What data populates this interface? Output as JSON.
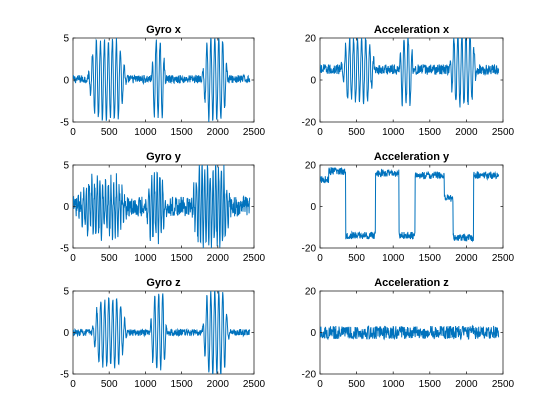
{
  "figure": {
    "line_color": "#0072BD",
    "background": "#ffffff"
  },
  "chart_data": [
    {
      "type": "line",
      "title": "Gyro x",
      "xlim": [
        0,
        2500
      ],
      "ylim": [
        -5,
        5
      ],
      "xticks": [
        0,
        500,
        1000,
        1500,
        2000,
        2500
      ],
      "yticks": [
        -5,
        0,
        5
      ],
      "signal": {
        "length": 2440,
        "baseline": 0.1,
        "noise": 0.5,
        "bursts": [
          {
            "start": 200,
            "end": 750,
            "amplitude": 4.6,
            "period": 55
          },
          {
            "start": 1080,
            "end": 1280,
            "amplitude": 4.6,
            "period": 55
          },
          {
            "start": 1780,
            "end": 2150,
            "amplitude": 4.8,
            "period": 55
          }
        ]
      }
    },
    {
      "type": "line",
      "title": "Acceleration x",
      "xlim": [
        0,
        2500
      ],
      "ylim": [
        -20,
        20
      ],
      "xticks": [
        0,
        500,
        1000,
        1500,
        2000,
        2500
      ],
      "yticks": [
        -20,
        0,
        20
      ],
      "signal": {
        "length": 2440,
        "baseline": 5,
        "noise": 2.5,
        "bursts": [
          {
            "start": 280,
            "end": 760,
            "amplitude": 15,
            "period": 55
          },
          {
            "start": 1080,
            "end": 1280,
            "amplitude": 16,
            "period": 55
          },
          {
            "start": 1760,
            "end": 2150,
            "amplitude": 17,
            "period": 55
          }
        ]
      }
    },
    {
      "type": "line",
      "title": "Gyro y",
      "xlim": [
        0,
        2500
      ],
      "ylim": [
        -5,
        5
      ],
      "xticks": [
        0,
        500,
        1000,
        1500,
        2000,
        2500
      ],
      "yticks": [
        -5,
        0,
        5
      ],
      "signal": {
        "length": 2440,
        "baseline": 0,
        "noise": 1.2,
        "bursts": [
          {
            "start": 60,
            "end": 760,
            "amplitude": 3.0,
            "period": 38
          },
          {
            "start": 1000,
            "end": 1300,
            "amplitude": 3.5,
            "period": 38
          },
          {
            "start": 1620,
            "end": 2200,
            "amplitude": 4.5,
            "period": 38
          }
        ]
      }
    },
    {
      "type": "line",
      "title": "Acceleration y",
      "xlim": [
        0,
        2500
      ],
      "ylim": [
        -20,
        20
      ],
      "xticks": [
        0,
        500,
        1000,
        1500,
        2000,
        2500
      ],
      "yticks": [
        -20,
        0,
        20
      ],
      "signal": {
        "length": 2440,
        "baseline": 16,
        "noise": 1.8,
        "plateaus": [
          {
            "start": 0,
            "end": 120,
            "level": 13
          },
          {
            "start": 120,
            "end": 350,
            "level": 17
          },
          {
            "start": 350,
            "end": 760,
            "level": -14
          },
          {
            "start": 760,
            "end": 1080,
            "level": 16
          },
          {
            "start": 1080,
            "end": 1300,
            "level": -14
          },
          {
            "start": 1300,
            "end": 1700,
            "level": 15
          },
          {
            "start": 1700,
            "end": 1820,
            "level": 4
          },
          {
            "start": 1820,
            "end": 2100,
            "level": -15
          },
          {
            "start": 2100,
            "end": 2440,
            "level": 15
          }
        ]
      }
    },
    {
      "type": "line",
      "title": "Gyro z",
      "xlim": [
        0,
        2500
      ],
      "ylim": [
        -5,
        5
      ],
      "xticks": [
        0,
        500,
        1000,
        1500,
        2000,
        2500
      ],
      "yticks": [
        -5,
        0,
        5
      ],
      "signal": {
        "length": 2440,
        "baseline": 0,
        "noise": 0.4,
        "bursts": [
          {
            "start": 260,
            "end": 750,
            "amplitude": 4.0,
            "period": 55
          },
          {
            "start": 1060,
            "end": 1300,
            "amplitude": 4.5,
            "period": 55
          },
          {
            "start": 1780,
            "end": 2160,
            "amplitude": 5.0,
            "period": 55
          }
        ]
      }
    },
    {
      "type": "line",
      "title": "Acceleration z",
      "xlim": [
        0,
        2500
      ],
      "ylim": [
        -20,
        20
      ],
      "xticks": [
        0,
        500,
        1000,
        1500,
        2000,
        2500
      ],
      "yticks": [
        -20,
        0,
        20
      ],
      "signal": {
        "length": 2440,
        "baseline": 0,
        "noise": 3.2,
        "bursts": []
      }
    }
  ]
}
